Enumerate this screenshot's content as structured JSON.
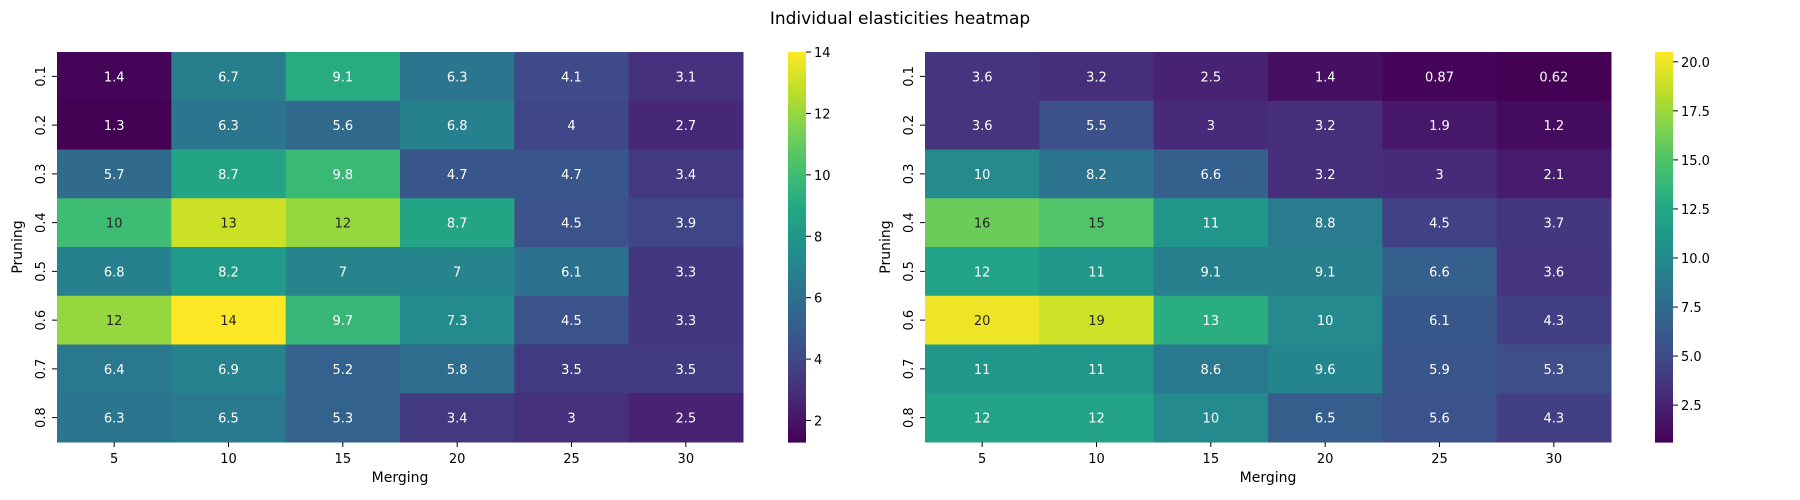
{
  "title": "Individual elasticities heatmap",
  "chart_data": [
    {
      "type": "heatmap",
      "xlabel": "Merging",
      "ylabel": "Pruning",
      "x_categories": [
        "5",
        "10",
        "15",
        "20",
        "25",
        "30"
      ],
      "y_categories": [
        "0.1",
        "0.2",
        "0.3",
        "0.4",
        "0.5",
        "0.6",
        "0.7",
        "0.8"
      ],
      "values": [
        [
          1.4,
          6.7,
          9.1,
          6.3,
          4.1,
          3.1
        ],
        [
          1.3,
          6.3,
          5.6,
          6.8,
          4.0,
          2.7
        ],
        [
          5.7,
          8.7,
          9.8,
          4.7,
          4.7,
          3.4
        ],
        [
          10.0,
          13.0,
          12.0,
          8.7,
          4.5,
          3.9
        ],
        [
          6.8,
          8.2,
          7.0,
          7.0,
          6.1,
          3.3
        ],
        [
          12.0,
          14.0,
          9.7,
          7.3,
          4.5,
          3.3
        ],
        [
          6.4,
          6.9,
          5.2,
          5.8,
          3.5,
          3.5
        ],
        [
          6.3,
          6.5,
          5.3,
          3.4,
          3.0,
          2.5
        ]
      ],
      "annotations": [
        [
          "1.4",
          "6.7",
          "9.1",
          "6.3",
          "4.1",
          "3.1"
        ],
        [
          "1.3",
          "6.3",
          "5.6",
          "6.8",
          "4",
          "2.7"
        ],
        [
          "5.7",
          "8.7",
          "9.8",
          "4.7",
          "4.7",
          "3.4"
        ],
        [
          "10",
          "13",
          "12",
          "8.7",
          "4.5",
          "3.9"
        ],
        [
          "6.8",
          "8.2",
          "7",
          "7",
          "6.1",
          "3.3"
        ],
        [
          "12",
          "14",
          "9.7",
          "7.3",
          "4.5",
          "3.3"
        ],
        [
          "6.4",
          "6.9",
          "5.2",
          "5.8",
          "3.5",
          "3.5"
        ],
        [
          "6.3",
          "6.5",
          "5.3",
          "3.4",
          "3",
          "2.5"
        ]
      ],
      "vmin": 1.3,
      "vmax": 14.0,
      "colormap": "viridis",
      "colorbar_ticks": [
        "2",
        "4",
        "6",
        "8",
        "10",
        "12",
        "14"
      ],
      "colorbar_tick_values": [
        2,
        4,
        6,
        8,
        10,
        12,
        14
      ]
    },
    {
      "type": "heatmap",
      "xlabel": "Merging",
      "ylabel": "Pruning",
      "x_categories": [
        "5",
        "10",
        "15",
        "20",
        "25",
        "30"
      ],
      "y_categories": [
        "0.1",
        "0.2",
        "0.3",
        "0.4",
        "0.5",
        "0.6",
        "0.7",
        "0.8"
      ],
      "values": [
        [
          3.6,
          3.2,
          2.5,
          1.4,
          0.87,
          0.62
        ],
        [
          3.6,
          5.5,
          3.0,
          3.2,
          1.9,
          1.2
        ],
        [
          10.0,
          8.2,
          6.6,
          3.2,
          3.0,
          2.1
        ],
        [
          16.0,
          15.0,
          11.0,
          8.8,
          4.5,
          3.7
        ],
        [
          12.0,
          11.0,
          9.1,
          9.1,
          6.6,
          3.6
        ],
        [
          20.0,
          19.0,
          13.0,
          10.0,
          6.1,
          4.3
        ],
        [
          11.0,
          11.0,
          8.6,
          9.6,
          5.9,
          5.3
        ],
        [
          12.0,
          12.0,
          10.0,
          6.5,
          5.6,
          4.3
        ]
      ],
      "annotations": [
        [
          "3.6",
          "3.2",
          "2.5",
          "1.4",
          "0.87",
          "0.62"
        ],
        [
          "3.6",
          "5.5",
          "3",
          "3.2",
          "1.9",
          "1.2"
        ],
        [
          "10",
          "8.2",
          "6.6",
          "3.2",
          "3",
          "2.1"
        ],
        [
          "16",
          "15",
          "11",
          "8.8",
          "4.5",
          "3.7"
        ],
        [
          "12",
          "11",
          "9.1",
          "9.1",
          "6.6",
          "3.6"
        ],
        [
          "20",
          "19",
          "13",
          "10",
          "6.1",
          "4.3"
        ],
        [
          "11",
          "11",
          "8.6",
          "9.6",
          "5.9",
          "5.3"
        ],
        [
          "12",
          "12",
          "10",
          "6.5",
          "5.6",
          "4.3"
        ]
      ],
      "vmin": 0.62,
      "vmax": 20.5,
      "colormap": "viridis",
      "colorbar_ticks": [
        "2.5",
        "5.0",
        "7.5",
        "10.0",
        "12.5",
        "15.0",
        "17.5",
        "20.0"
      ],
      "colorbar_tick_values": [
        2.5,
        5.0,
        7.5,
        10.0,
        12.5,
        15.0,
        17.5,
        20.0
      ]
    }
  ]
}
